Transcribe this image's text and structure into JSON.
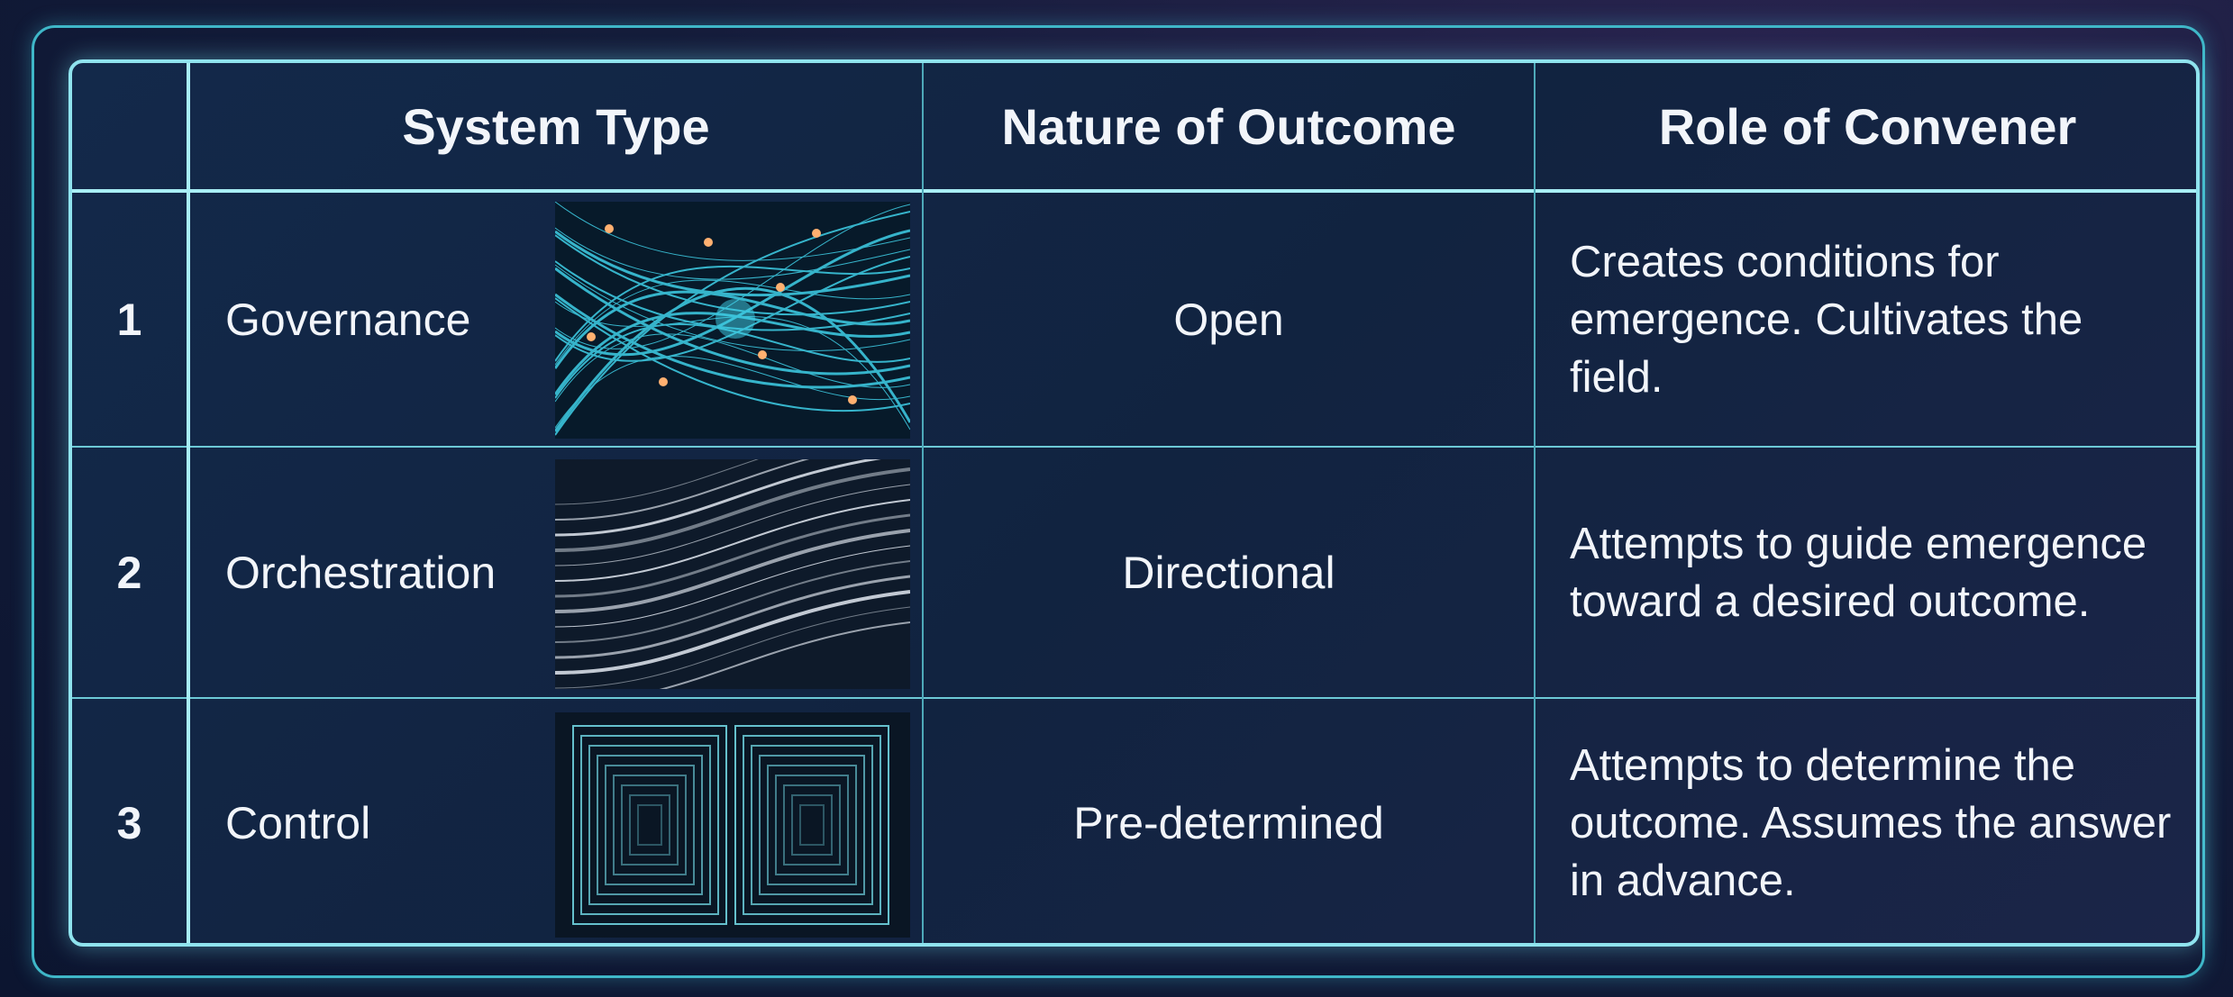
{
  "table": {
    "header": [
      "System Type",
      "Nature of Outcome",
      "Role of Convener"
    ],
    "rows": [
      [
        1,
        "Governance",
        "Open",
        "Creates conditions for emergence. Cultivates the field."
      ],
      [
        2,
        "Orchestration",
        "Directional",
        "Attempts to guide emergence toward a desired outcome."
      ],
      [
        3,
        "Control",
        "Pre-determined",
        "Attempts to determine the outcome. Assumes the answer in advance."
      ]
    ]
  }
}
